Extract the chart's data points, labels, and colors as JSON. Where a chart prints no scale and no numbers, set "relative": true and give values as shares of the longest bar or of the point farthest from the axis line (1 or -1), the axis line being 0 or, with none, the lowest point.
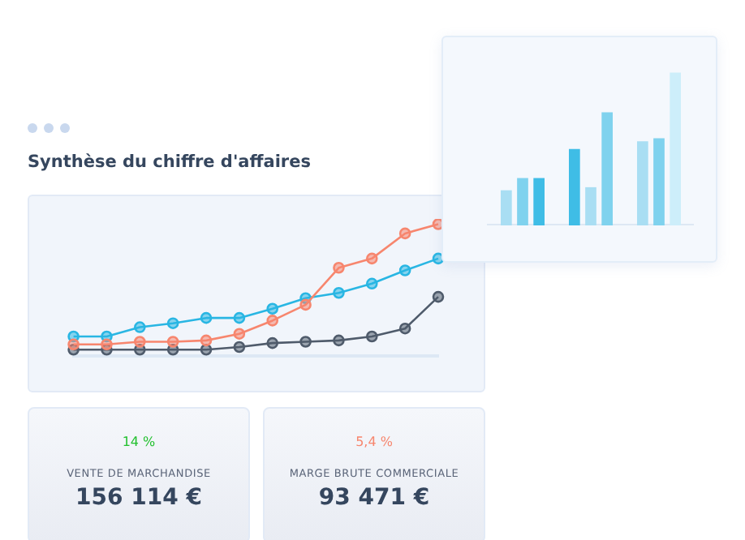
{
  "chart_data": [
    {
      "type": "line",
      "title": "Synthèse du chiffre d'affaires",
      "relative": true,
      "marker": "circle",
      "legend": false,
      "grid": false,
      "categories": [
        null,
        null,
        null,
        null,
        null,
        null,
        null,
        null,
        null,
        null,
        null,
        null
      ],
      "series": [
        {
          "color": "#f7866e",
          "values": [
            0.09,
            0.09,
            0.11,
            0.11,
            0.12,
            0.17,
            0.27,
            0.39,
            0.67,
            0.74,
            0.93,
            1
          ]
        },
        {
          "color": "#29b6e3",
          "values": [
            0.15,
            0.15,
            0.22,
            0.25,
            0.29,
            0.29,
            0.36,
            0.44,
            0.48,
            0.55,
            0.65,
            0.74
          ]
        },
        {
          "color": "#4f5b6b",
          "values": [
            0.05,
            0.05,
            0.05,
            0.05,
            0.05,
            0.07,
            0.1,
            0.11,
            0.12,
            0.15,
            0.21,
            0.45
          ]
        }
      ]
    },
    {
      "type": "bar",
      "relative": true,
      "legend": false,
      "grid": false,
      "categories": [
        null,
        null,
        null
      ],
      "series": [
        {
          "colors": [
            "#a9def3",
            "#3fbde6",
            "#a9def3"
          ],
          "values": [
            0.23,
            0.5,
            0.55
          ]
        },
        {
          "colors": [
            "#7fd2ee",
            "#a9def3",
            "#7fd2ee"
          ],
          "values": [
            0.31,
            0.25,
            0.57
          ]
        },
        {
          "colors": [
            "#3fbde6",
            "#7fd2ee",
            "#cdeefa"
          ],
          "values": [
            0.31,
            0.74,
            1
          ]
        }
      ]
    },
    {
      "type": "other",
      "annotations": [
        "14 %",
        "VENTE DE MARCHANDISE",
        "156 114 €"
      ]
    },
    {
      "type": "other",
      "annotations": [
        "5,4 %",
        "MARGE BRUTE COMMERCIALE",
        "93 471 €"
      ]
    }
  ]
}
